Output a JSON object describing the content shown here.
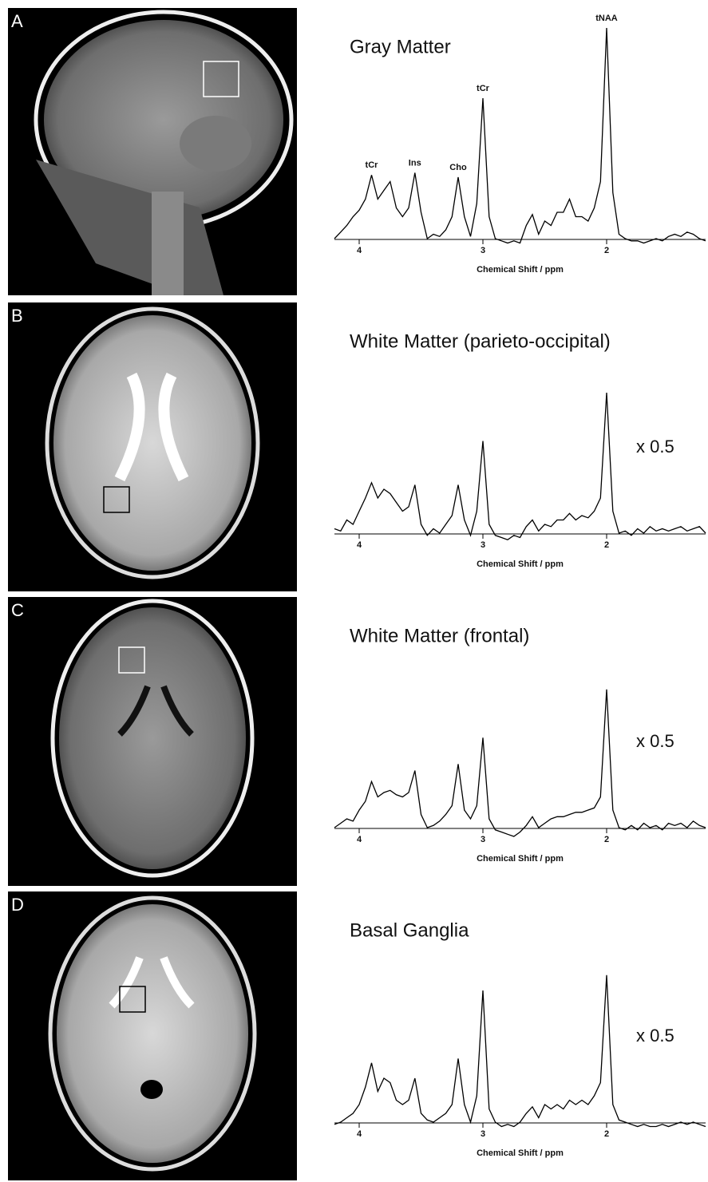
{
  "chart_data": [
    {
      "type": "line",
      "panel_label": "A",
      "title": "Gray Matter",
      "xlabel": "Chemical Shift / ppm",
      "xlim": [
        4.2,
        1.2
      ],
      "xticks": [
        4,
        3,
        2
      ],
      "ylim": [
        0,
        100
      ],
      "color": "#000000",
      "peak_labels": [
        {
          "label": "tCr",
          "x": 3.9
        },
        {
          "label": "Ins",
          "x": 3.55
        },
        {
          "label": "Cho",
          "x": 3.2
        },
        {
          "label": "tCr",
          "x": 3.0
        },
        {
          "label": "tNAA",
          "x": 2.0
        }
      ],
      "x": [
        4.2,
        4.15,
        4.1,
        4.05,
        4.0,
        3.95,
        3.9,
        3.85,
        3.8,
        3.75,
        3.7,
        3.65,
        3.6,
        3.55,
        3.5,
        3.45,
        3.4,
        3.35,
        3.3,
        3.25,
        3.2,
        3.15,
        3.1,
        3.05,
        3.0,
        2.95,
        2.9,
        2.85,
        2.8,
        2.75,
        2.7,
        2.65,
        2.6,
        2.55,
        2.5,
        2.45,
        2.4,
        2.35,
        2.3,
        2.25,
        2.2,
        2.15,
        2.1,
        2.05,
        2.0,
        1.95,
        1.9,
        1.85,
        1.8,
        1.75,
        1.7,
        1.65,
        1.6,
        1.55,
        1.5,
        1.45,
        1.4,
        1.35,
        1.3,
        1.25,
        1.2
      ],
      "values": [
        4,
        7,
        10,
        14,
        17,
        22,
        33,
        22,
        26,
        30,
        18,
        14,
        18,
        34,
        16,
        4,
        6,
        5,
        8,
        14,
        32,
        14,
        5,
        20,
        68,
        14,
        4,
        3,
        2,
        3,
        2,
        10,
        15,
        6,
        12,
        10,
        16,
        16,
        22,
        14,
        14,
        12,
        18,
        30,
        100,
        25,
        6,
        4,
        3,
        3,
        2,
        3,
        4,
        3,
        5,
        6,
        5,
        7,
        6,
        4,
        3
      ]
    },
    {
      "type": "line",
      "panel_label": "B",
      "title": "White Matter (parieto-occipital)",
      "xlabel": "Chemical Shift / ppm",
      "xlim": [
        4.2,
        1.2
      ],
      "xticks": [
        4,
        3,
        2
      ],
      "ylim": [
        0,
        100
      ],
      "color": "#000000",
      "annotation": "x 0.5",
      "x": [
        4.2,
        4.15,
        4.1,
        4.05,
        4.0,
        3.95,
        3.9,
        3.85,
        3.8,
        3.75,
        3.7,
        3.65,
        3.6,
        3.55,
        3.5,
        3.45,
        3.4,
        3.35,
        3.3,
        3.25,
        3.2,
        3.15,
        3.1,
        3.05,
        3.0,
        2.95,
        2.9,
        2.85,
        2.8,
        2.75,
        2.7,
        2.65,
        2.6,
        2.55,
        2.5,
        2.45,
        2.4,
        2.35,
        2.3,
        2.25,
        2.2,
        2.15,
        2.1,
        2.05,
        2.0,
        1.95,
        1.9,
        1.85,
        1.8,
        1.75,
        1.7,
        1.65,
        1.6,
        1.55,
        1.5,
        1.45,
        1.4,
        1.35,
        1.3,
        1.25,
        1.2
      ],
      "values": [
        6,
        5,
        10,
        8,
        14,
        20,
        27,
        20,
        24,
        22,
        18,
        14,
        16,
        26,
        8,
        3,
        6,
        4,
        8,
        12,
        26,
        10,
        3,
        14,
        46,
        8,
        3,
        2,
        1,
        3,
        2,
        7,
        10,
        5,
        8,
        7,
        10,
        10,
        13,
        10,
        12,
        11,
        14,
        20,
        68,
        14,
        4,
        5,
        3,
        6,
        4,
        7,
        5,
        6,
        5,
        6,
        7,
        5,
        6,
        7,
        4
      ]
    },
    {
      "type": "line",
      "panel_label": "C",
      "title": "White Matter (frontal)",
      "xlabel": "Chemical Shift / ppm",
      "xlim": [
        4.2,
        1.2
      ],
      "xticks": [
        4,
        3,
        2
      ],
      "ylim": [
        0,
        100
      ],
      "color": "#000000",
      "annotation": "x 0.5",
      "x": [
        4.2,
        4.15,
        4.1,
        4.05,
        4.0,
        3.95,
        3.9,
        3.85,
        3.8,
        3.75,
        3.7,
        3.65,
        3.6,
        3.55,
        3.5,
        3.45,
        3.4,
        3.35,
        3.3,
        3.25,
        3.2,
        3.15,
        3.1,
        3.05,
        3.0,
        2.95,
        2.9,
        2.85,
        2.8,
        2.75,
        2.7,
        2.65,
        2.6,
        2.55,
        2.5,
        2.45,
        2.4,
        2.35,
        2.3,
        2.25,
        2.2,
        2.15,
        2.1,
        2.05,
        2.0,
        1.95,
        1.9,
        1.85,
        1.8,
        1.75,
        1.7,
        1.65,
        1.6,
        1.55,
        1.5,
        1.45,
        1.4,
        1.35,
        1.3,
        1.25,
        1.2
      ],
      "values": [
        4,
        6,
        8,
        7,
        12,
        16,
        25,
        18,
        20,
        21,
        19,
        18,
        20,
        30,
        10,
        4,
        5,
        7,
        10,
        14,
        33,
        12,
        8,
        14,
        45,
        8,
        3,
        2,
        1,
        0,
        2,
        5,
        9,
        4,
        6,
        8,
        9,
        9,
        10,
        11,
        11,
        12,
        13,
        18,
        67,
        12,
        4,
        3,
        5,
        3,
        6,
        4,
        5,
        3,
        6,
        5,
        6,
        4,
        7,
        5,
        4
      ]
    },
    {
      "type": "line",
      "panel_label": "D",
      "title": "Basal Ganglia",
      "xlabel": "Chemical Shift / ppm",
      "xlim": [
        4.2,
        1.2
      ],
      "xticks": [
        4,
        3,
        2
      ],
      "ylim": [
        0,
        100
      ],
      "color": "#000000",
      "annotation": "x 0.5",
      "x": [
        4.2,
        4.15,
        4.1,
        4.05,
        4.0,
        3.95,
        3.9,
        3.85,
        3.8,
        3.75,
        3.7,
        3.65,
        3.6,
        3.55,
        3.5,
        3.45,
        3.4,
        3.35,
        3.3,
        3.25,
        3.2,
        3.15,
        3.1,
        3.05,
        3.0,
        2.95,
        2.9,
        2.85,
        2.8,
        2.75,
        2.7,
        2.65,
        2.6,
        2.55,
        2.5,
        2.45,
        2.4,
        2.35,
        2.3,
        2.25,
        2.2,
        2.15,
        2.1,
        2.05,
        2.0,
        1.95,
        1.9,
        1.85,
        1.8,
        1.75,
        1.7,
        1.65,
        1.6,
        1.55,
        1.5,
        1.45,
        1.4,
        1.35,
        1.3,
        1.25,
        1.2
      ],
      "values": [
        3,
        4,
        6,
        8,
        12,
        20,
        31,
        18,
        24,
        22,
        14,
        12,
        14,
        24,
        8,
        5,
        4,
        6,
        8,
        12,
        33,
        12,
        4,
        16,
        64,
        10,
        4,
        2,
        3,
        2,
        4,
        8,
        11,
        6,
        12,
        10,
        12,
        10,
        14,
        12,
        14,
        12,
        16,
        22,
        71,
        12,
        5,
        4,
        3,
        2,
        3,
        2,
        2,
        3,
        2,
        3,
        4,
        3,
        4,
        3,
        2
      ]
    }
  ]
}
